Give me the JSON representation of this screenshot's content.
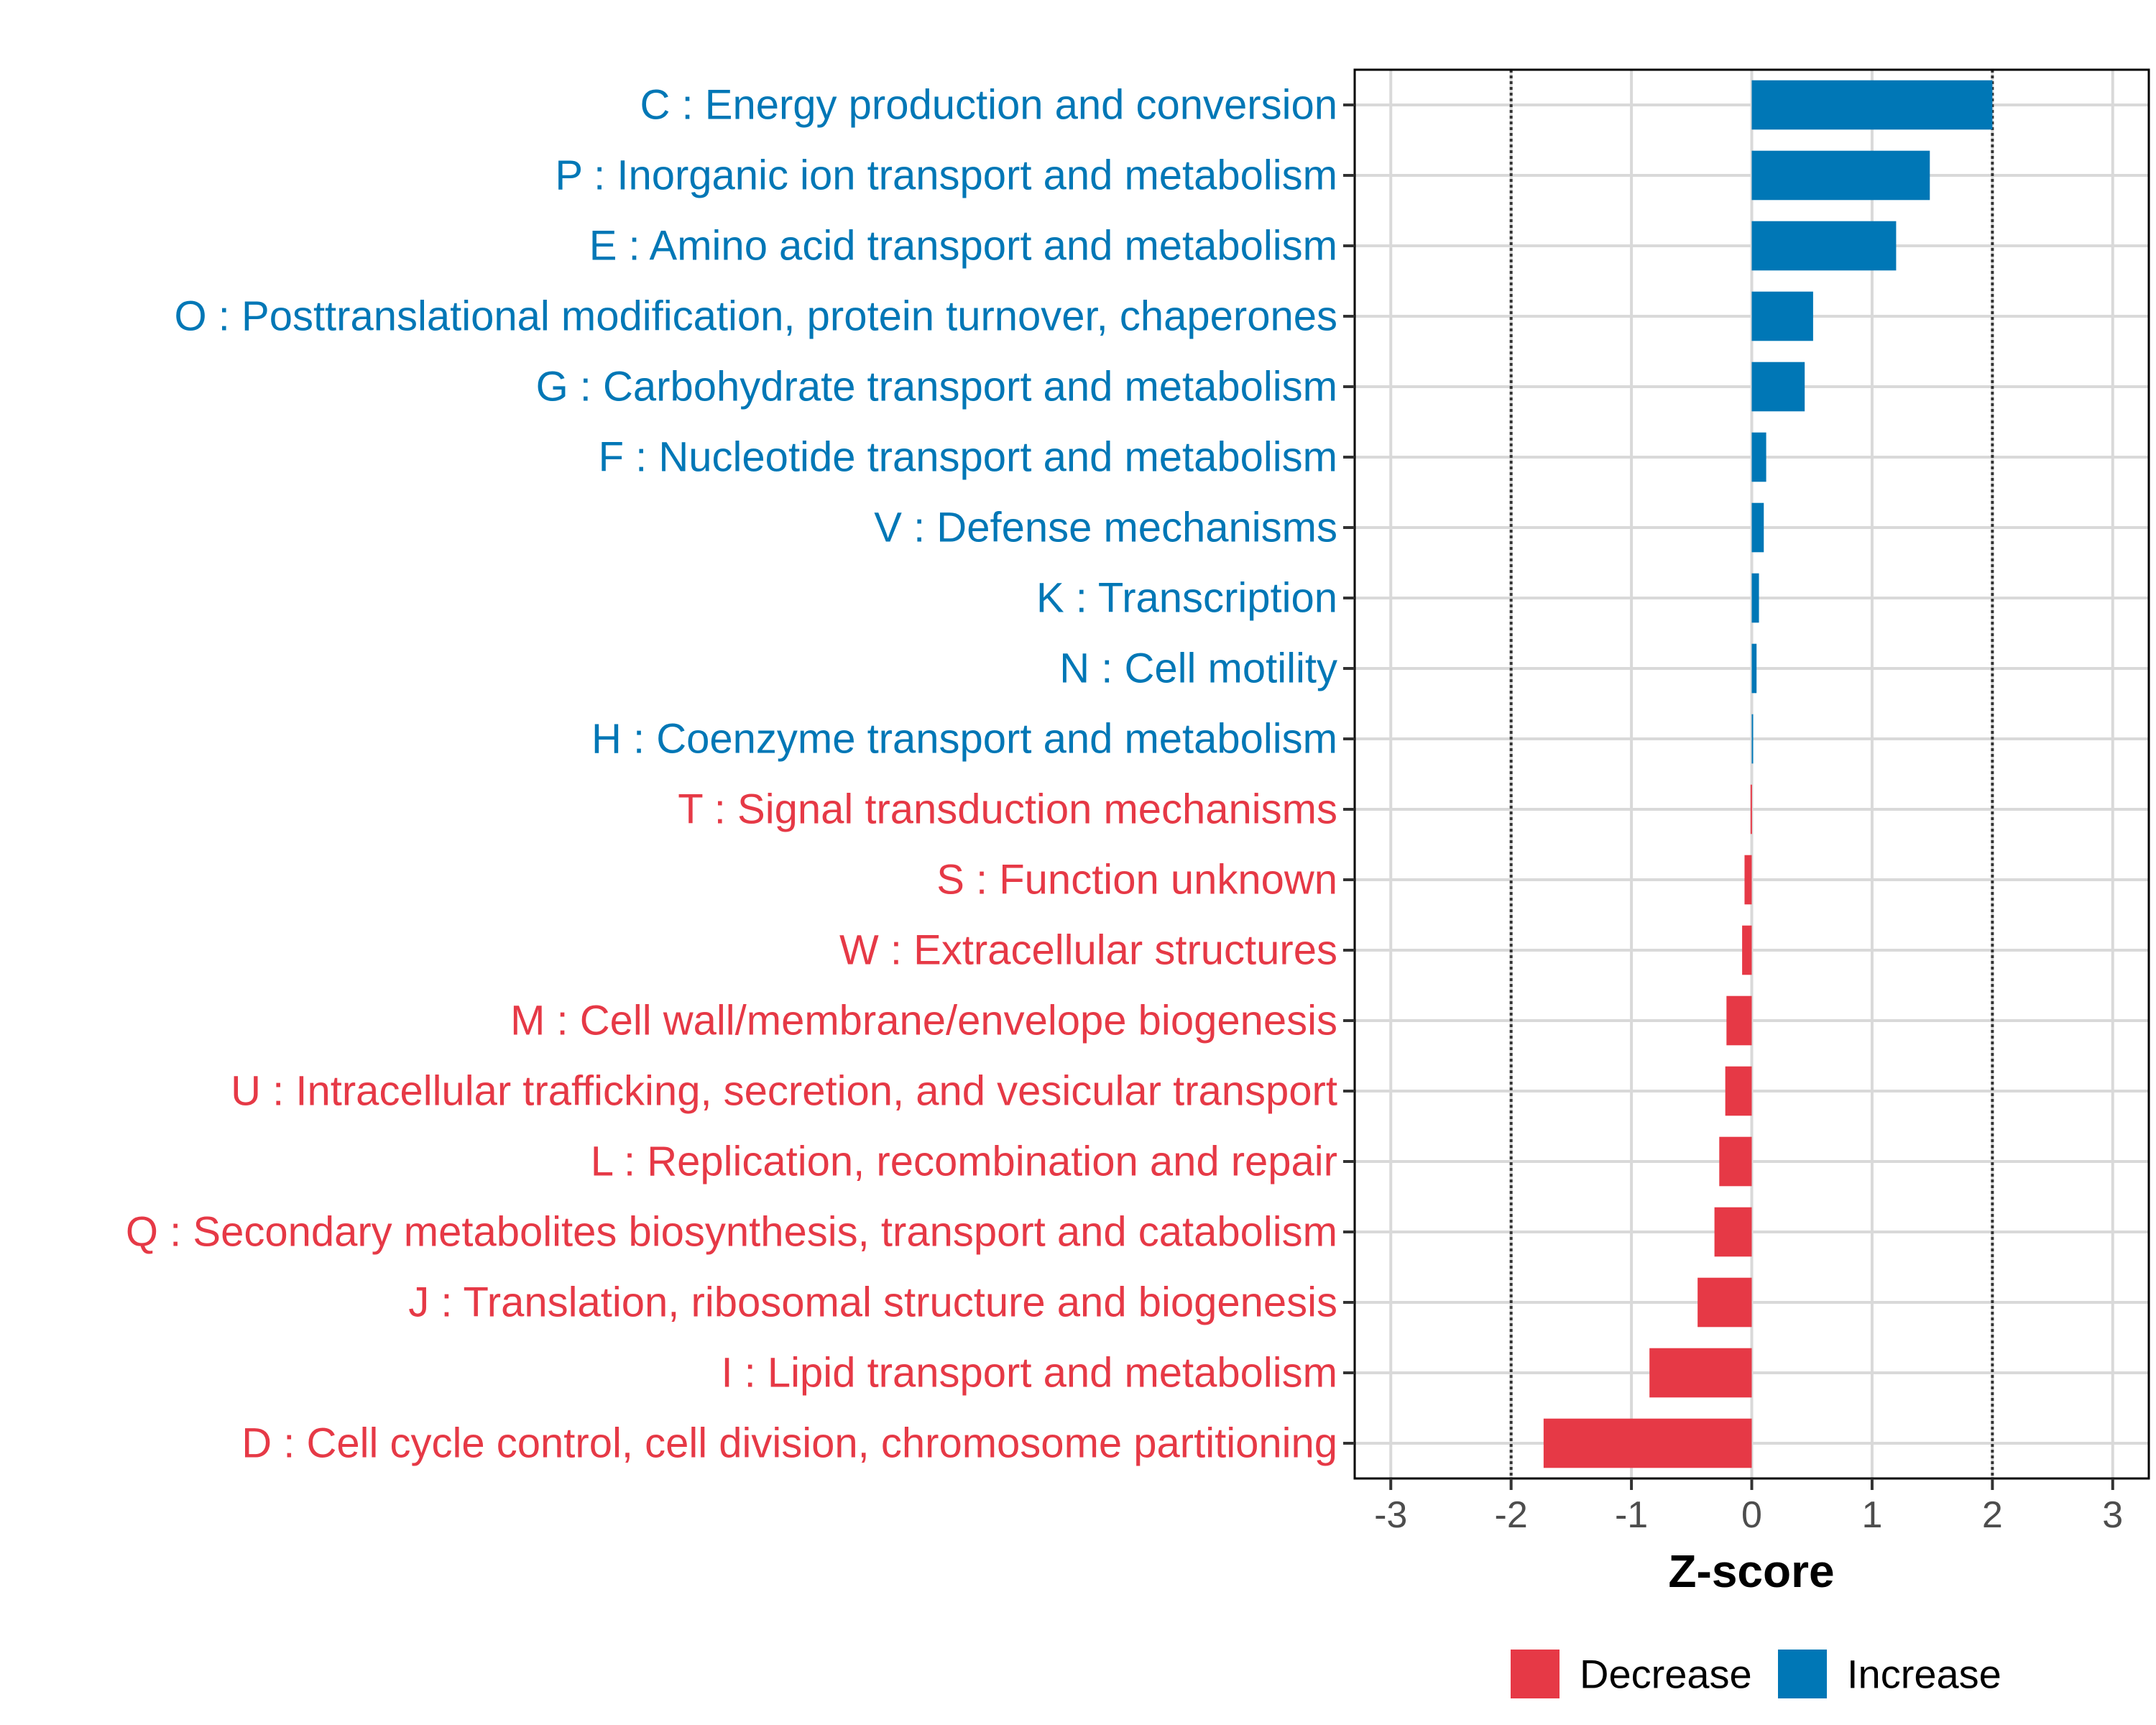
{
  "chart_data": {
    "type": "bar",
    "orientation": "horizontal",
    "title": "",
    "xlabel": "Z-score",
    "ylabel": "",
    "xlim": [
      -3.3,
      3.3
    ],
    "xticks": [
      -3,
      -2,
      -1,
      0,
      1,
      2,
      3
    ],
    "xtick_labels": [
      "-3",
      "-2",
      "-1",
      "0",
      "1",
      "2",
      "3"
    ],
    "reference_lines": [
      -2,
      2
    ],
    "grid": true,
    "categories": [
      "C : Energy production and conversion",
      "P : Inorganic ion transport and metabolism",
      "E : Amino acid transport and metabolism",
      "O : Posttranslational modification, protein turnover, chaperones",
      "G : Carbohydrate transport and metabolism",
      "F : Nucleotide transport and metabolism",
      "V : Defense mechanisms",
      "K : Transcription",
      "N : Cell motility",
      "H : Coenzyme transport and metabolism",
      "T : Signal transduction mechanisms",
      "S : Function unknown",
      "W : Extracellular structures",
      "M : Cell wall/membrane/envelope biogenesis",
      "U : Intracellular trafficking, secretion, and vesicular transport",
      "L : Replication, recombination and repair",
      "Q : Secondary metabolites biosynthesis, transport and catabolism",
      "J : Translation, ribosomal structure and biogenesis",
      "I : Lipid transport and metabolism",
      "D : Cell cycle control, cell division, chromosome partitioning"
    ],
    "values": [
      2.0,
      1.48,
      1.2,
      0.51,
      0.44,
      0.12,
      0.1,
      0.06,
      0.04,
      0.01,
      -0.01,
      -0.06,
      -0.08,
      -0.21,
      -0.22,
      -0.27,
      -0.31,
      -0.45,
      -0.85,
      -1.73
    ],
    "groups": [
      "Increase",
      "Increase",
      "Increase",
      "Increase",
      "Increase",
      "Increase",
      "Increase",
      "Increase",
      "Increase",
      "Increase",
      "Decrease",
      "Decrease",
      "Decrease",
      "Decrease",
      "Decrease",
      "Decrease",
      "Decrease",
      "Decrease",
      "Decrease",
      "Decrease"
    ],
    "legend": {
      "position": "bottom",
      "entries": [
        {
          "name": "Decrease",
          "color": "#e63946"
        },
        {
          "name": "Increase",
          "color": "#0077b6"
        }
      ]
    },
    "colors": {
      "Increase": "#0077b6",
      "Decrease": "#e63946"
    }
  }
}
